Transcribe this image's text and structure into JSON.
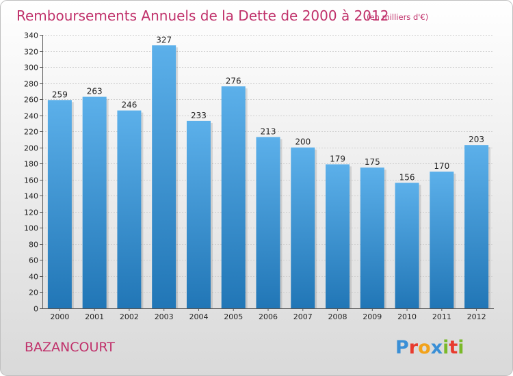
{
  "chart_data": {
    "type": "bar",
    "title": "Remboursements Annuels de la Dette de 2000 à 2012",
    "subtitle": "(en milliers d'€)",
    "categories": [
      "2000",
      "2001",
      "2002",
      "2003",
      "2004",
      "2005",
      "2006",
      "2007",
      "2008",
      "2009",
      "2010",
      "2011",
      "2012"
    ],
    "values": [
      259,
      263,
      246,
      327,
      233,
      276,
      213,
      200,
      179,
      175,
      156,
      170,
      203
    ],
    "value_labels": [
      "259",
      "263",
      "246",
      "327",
      "233",
      "276",
      "213",
      "200",
      "179",
      "175",
      "156",
      "170",
      "203"
    ],
    "ylim": [
      0,
      340
    ],
    "yticks": [
      0,
      20,
      40,
      60,
      80,
      100,
      120,
      140,
      160,
      180,
      200,
      220,
      240,
      260,
      280,
      300,
      320,
      340
    ],
    "ytick_labels": [
      "0",
      "20",
      "40",
      "60",
      "80",
      "100",
      "120",
      "140",
      "160",
      "180",
      "200",
      "220",
      "240",
      "260",
      "280",
      "300",
      "320",
      "340"
    ],
    "xlabel": "",
    "ylabel": "",
    "grid": true,
    "colors": {
      "bar_top": "#5cb0ea",
      "bar_bottom": "#2176b6",
      "title": "#c0306a",
      "commune": "#c0306a",
      "background_top": "#ffffff",
      "background_bottom": "#d9d9d9"
    }
  },
  "commune_name": "BAZANCOURT",
  "logo": {
    "text": "Proxiti",
    "letters": [
      {
        "ch": "P",
        "color": "#3a8fd6"
      },
      {
        "ch": "r",
        "color": "#e83b2e"
      },
      {
        "ch": "o",
        "color": "#f2a21b"
      },
      {
        "ch": "x",
        "color": "#3a8fd6"
      },
      {
        "ch": "i",
        "color": "#7ab929"
      },
      {
        "ch": "t",
        "color": "#e83b2e"
      },
      {
        "ch": "i",
        "color": "#7ab929"
      }
    ]
  }
}
